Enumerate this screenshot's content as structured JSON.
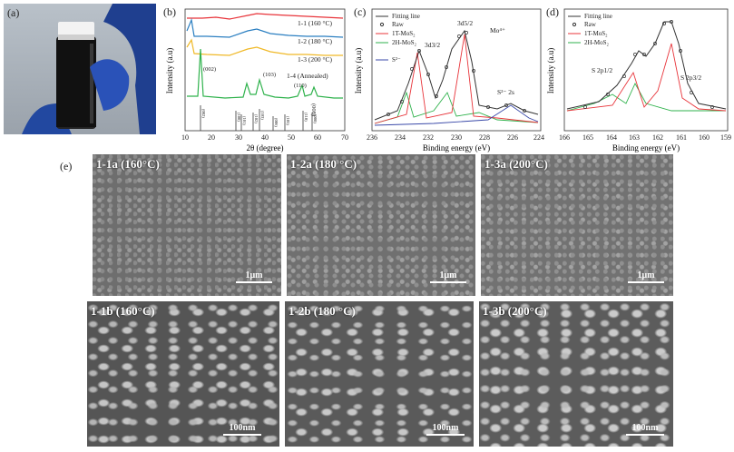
{
  "panels": {
    "a": {
      "label": "(a)"
    },
    "b": {
      "label": "(b)",
      "series": [
        "1-1 (160 °C)",
        "1-2 (180 °C)",
        "1-3 (200 °C)",
        "1-4 (Annealed)"
      ],
      "series_colors": [
        "#e8343a",
        "#2b7fc1",
        "#f0b928",
        "#2fb24c"
      ],
      "peaks": [
        "(002)",
        "(103)",
        "(110)",
        "(008)"
      ],
      "ref_ticks": [
        "(002)",
        "(100)",
        "(101)",
        "(102)",
        "(103)",
        "(006)",
        "(105)",
        "(110)",
        "(008)"
      ]
    },
    "c": {
      "label": "(c)",
      "legend": [
        "Fitting line",
        "Raw",
        "1T-MoS₂",
        "2H-MoS₂",
        "S²⁻"
      ],
      "annotations": [
        "3d3/2",
        "3d5/2",
        "Mo⁴⁺",
        "S²⁻ 2s"
      ]
    },
    "d": {
      "label": "(d)",
      "legend": [
        "Fitting line",
        "Raw",
        "1T-MoS₂",
        "2H-MoS₂"
      ],
      "annotations": [
        "S 2p1/2",
        "S 2p3/2"
      ]
    },
    "e": {
      "label": "(e)"
    }
  },
  "chart_data": [
    {
      "type": "line",
      "panel": "b",
      "xlabel": "2θ (degree)",
      "ylabel": "Intensity (a.u)",
      "xlim": [
        10,
        70
      ],
      "xticks": [
        10,
        20,
        30,
        40,
        50,
        60,
        70
      ],
      "series": [
        {
          "name": "1-1 (160 °C)",
          "color": "#e8343a"
        },
        {
          "name": "1-2 (180 °C)",
          "color": "#2b7fc1"
        },
        {
          "name": "1-3 (200 °C)",
          "color": "#f0b928"
        },
        {
          "name": "1-4 (Annealed)",
          "color": "#2fb24c"
        }
      ]
    },
    {
      "type": "line",
      "panel": "c",
      "xlabel": "Binding energy (eV)",
      "ylabel": "Intensity (a.u)",
      "xlim": [
        236,
        224
      ],
      "xticks": [
        236,
        234,
        232,
        230,
        228,
        226,
        224
      ]
    },
    {
      "type": "line",
      "panel": "d",
      "xlabel": "Binding energy (eV)",
      "ylabel": "Intensity (a.u)",
      "xlim": [
        166,
        159
      ],
      "xticks": [
        166,
        165,
        164,
        163,
        162,
        161,
        160,
        159
      ]
    }
  ],
  "sem": [
    {
      "caption": "1-1a (160°C)",
      "scale": "1μm"
    },
    {
      "caption": "1-2a (180 °C)",
      "scale": "1μm"
    },
    {
      "caption": "1-3a (200°C)",
      "scale": "1μm"
    },
    {
      "caption": "1-1b (160°C)",
      "scale": "100nm"
    },
    {
      "caption": "1-2b (180 °C)",
      "scale": "100nm"
    },
    {
      "caption": "1-3b (200°C)",
      "scale": "100nm"
    }
  ]
}
